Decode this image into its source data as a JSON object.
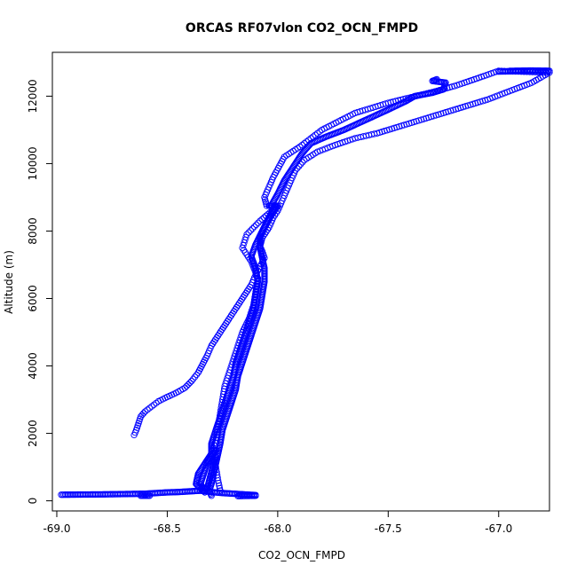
{
  "chart_data": {
    "type": "scatter",
    "title": "ORCAS RF07vlon CO2_OCN_FMPD",
    "xlabel": "CO2_OCN_FMPD",
    "ylabel": "Altitude (m)",
    "xlim": [
      -69.02,
      -66.77
    ],
    "ylim": [
      -300,
      13300
    ],
    "x_ticks": [
      -69.0,
      -68.5,
      -68.0,
      -67.5,
      -67.0
    ],
    "x_tick_labels": [
      "-69.0",
      "-68.5",
      "-68.0",
      "-67.5",
      "-67.0"
    ],
    "y_ticks": [
      0,
      2000,
      4000,
      6000,
      8000,
      10000,
      12000
    ],
    "y_tick_labels": [
      "0",
      "2000",
      "4000",
      "6000",
      "8000",
      "10000",
      "12000"
    ],
    "grid": false,
    "marker": "open-circle",
    "color": "#0000ff",
    "series": [
      {
        "style": "points",
        "points": [
          [
            -68.65,
            1950
          ],
          [
            -68.64,
            2100
          ],
          [
            -68.63,
            2300
          ],
          [
            -68.62,
            2500
          ],
          [
            -68.6,
            2650
          ],
          [
            -68.57,
            2800
          ],
          [
            -68.54,
            2950
          ],
          [
            -68.5,
            3080
          ],
          [
            -68.46,
            3200
          ],
          [
            -68.42,
            3350
          ],
          [
            -68.39,
            3550
          ],
          [
            -68.36,
            3800
          ],
          [
            -68.34,
            4050
          ],
          [
            -68.32,
            4300
          ],
          [
            -68.3,
            4600
          ],
          [
            -68.27,
            4900
          ],
          [
            -68.24,
            5200
          ],
          [
            -68.21,
            5500
          ],
          [
            -68.18,
            5800
          ],
          [
            -68.15,
            6100
          ],
          [
            -68.12,
            6400
          ],
          [
            -68.1,
            6700
          ],
          [
            -68.08,
            6950
          ],
          [
            -68.06,
            7200
          ],
          [
            -68.07,
            7400
          ],
          [
            -68.08,
            7550
          ],
          [
            -68.07,
            7800
          ],
          [
            -68.04,
            8100
          ],
          [
            -68.02,
            8400
          ],
          [
            -68.0,
            8600
          ],
          [
            -67.98,
            8900
          ],
          [
            -67.96,
            9200
          ],
          [
            -67.94,
            9500
          ],
          [
            -67.92,
            9800
          ],
          [
            -67.88,
            10100
          ],
          [
            -67.82,
            10350
          ],
          [
            -67.74,
            10550
          ],
          [
            -67.65,
            10750
          ],
          [
            -67.55,
            10900
          ],
          [
            -67.45,
            11100
          ],
          [
            -67.35,
            11300
          ],
          [
            -67.25,
            11500
          ],
          [
            -67.15,
            11700
          ],
          [
            -67.05,
            11900
          ],
          [
            -66.95,
            12150
          ],
          [
            -66.85,
            12400
          ],
          [
            -66.77,
            12700
          ],
          [
            -67.0,
            12750
          ],
          [
            -67.1,
            12520
          ],
          [
            -67.2,
            12300
          ],
          [
            -67.3,
            12120
          ],
          [
            -67.42,
            11930
          ],
          [
            -67.5,
            11800
          ],
          [
            -67.65,
            11500
          ],
          [
            -67.8,
            11000
          ],
          [
            -67.9,
            10500
          ],
          [
            -67.97,
            10200
          ],
          [
            -68.02,
            9600
          ],
          [
            -68.06,
            9000
          ],
          [
            -68.05,
            8750
          ],
          [
            -68.0,
            8750
          ],
          [
            -68.08,
            8300
          ],
          [
            -68.14,
            7900
          ],
          [
            -68.16,
            7500
          ],
          [
            -68.12,
            7100
          ],
          [
            -68.09,
            6600
          ],
          [
            -68.1,
            6200
          ],
          [
            -68.11,
            5800
          ],
          [
            -68.13,
            5400
          ],
          [
            -68.16,
            5000
          ],
          [
            -68.18,
            4600
          ],
          [
            -68.2,
            4200
          ],
          [
            -68.22,
            3800
          ],
          [
            -68.24,
            3400
          ],
          [
            -68.25,
            3000
          ],
          [
            -68.26,
            2600
          ],
          [
            -68.27,
            2200
          ],
          [
            -68.28,
            1800
          ],
          [
            -68.3,
            1400
          ],
          [
            -68.28,
            1000
          ],
          [
            -68.27,
            600
          ],
          [
            -68.26,
            300
          ]
        ]
      },
      {
        "style": "dense-band",
        "points": [
          [
            -68.04,
            8750
          ],
          [
            -68.0,
            8750
          ],
          [
            -68.03,
            8450
          ],
          [
            -68.06,
            8100
          ],
          [
            -68.08,
            7800
          ],
          [
            -68.08,
            7500
          ],
          [
            -68.07,
            7200
          ],
          [
            -68.06,
            6900
          ],
          [
            -68.06,
            6500
          ],
          [
            -68.07,
            6100
          ],
          [
            -68.08,
            5700
          ],
          [
            -68.1,
            5300
          ],
          [
            -68.12,
            4900
          ],
          [
            -68.14,
            4500
          ],
          [
            -68.16,
            4100
          ],
          [
            -68.18,
            3700
          ],
          [
            -68.19,
            3300
          ],
          [
            -68.21,
            2900
          ],
          [
            -68.23,
            2500
          ],
          [
            -68.25,
            2100
          ],
          [
            -68.26,
            1700
          ],
          [
            -68.27,
            1400
          ],
          [
            -68.28,
            1100
          ],
          [
            -68.29,
            800
          ],
          [
            -68.3,
            500
          ],
          [
            -68.31,
            300
          ],
          [
            -68.3,
            150
          ]
        ]
      },
      {
        "style": "dense-band",
        "points": [
          [
            -68.01,
            8750
          ],
          [
            -68.04,
            8400
          ],
          [
            -68.07,
            8000
          ],
          [
            -68.1,
            7600
          ],
          [
            -68.12,
            7250
          ],
          [
            -68.1,
            6900
          ],
          [
            -68.09,
            6500
          ],
          [
            -68.1,
            6100
          ],
          [
            -68.11,
            5700
          ],
          [
            -68.13,
            5300
          ],
          [
            -68.15,
            4900
          ],
          [
            -68.17,
            4500
          ],
          [
            -68.19,
            4100
          ],
          [
            -68.2,
            3700
          ],
          [
            -68.22,
            3300
          ],
          [
            -68.24,
            2900
          ],
          [
            -68.26,
            2500
          ],
          [
            -68.28,
            2100
          ],
          [
            -68.3,
            1700
          ],
          [
            -68.3,
            1400
          ],
          [
            -68.33,
            1100
          ],
          [
            -68.36,
            800
          ],
          [
            -68.37,
            500
          ],
          [
            -68.33,
            250
          ]
        ]
      },
      {
        "style": "dense-band",
        "points": [
          [
            -68.03,
            8750
          ],
          [
            -68.0,
            9100
          ],
          [
            -67.97,
            9500
          ],
          [
            -67.93,
            9900
          ],
          [
            -67.89,
            10300
          ],
          [
            -67.85,
            10600
          ],
          [
            -67.78,
            10800
          ],
          [
            -67.7,
            11000
          ],
          [
            -67.6,
            11300
          ],
          [
            -67.5,
            11600
          ],
          [
            -67.42,
            11850
          ],
          [
            -67.38,
            12000
          ],
          [
            -67.3,
            12100
          ],
          [
            -67.25,
            12200
          ],
          [
            -67.24,
            12400
          ],
          [
            -67.3,
            12450
          ],
          [
            -67.28,
            12500
          ]
        ]
      },
      {
        "style": "dense-band",
        "points": [
          [
            -66.95,
            12750
          ],
          [
            -66.85,
            12760
          ],
          [
            -66.77,
            12750
          ],
          [
            -66.9,
            12740
          ],
          [
            -67.0,
            12730
          ]
        ]
      },
      {
        "style": "dense-band",
        "points": [
          [
            -68.98,
            180
          ],
          [
            -68.9,
            185
          ],
          [
            -68.8,
            190
          ],
          [
            -68.7,
            200
          ],
          [
            -68.6,
            210
          ],
          [
            -68.55,
            230
          ],
          [
            -68.5,
            250
          ],
          [
            -68.45,
            260
          ],
          [
            -68.4,
            280
          ],
          [
            -68.35,
            300
          ],
          [
            -68.3,
            260
          ],
          [
            -68.25,
            230
          ],
          [
            -68.2,
            210
          ],
          [
            -68.15,
            190
          ],
          [
            -68.1,
            170
          ]
        ]
      },
      {
        "style": "dense-band",
        "points": [
          [
            -68.28,
            1500
          ],
          [
            -68.3,
            1300
          ],
          [
            -68.32,
            1100
          ],
          [
            -68.33,
            900
          ],
          [
            -68.34,
            700
          ],
          [
            -68.35,
            500
          ],
          [
            -68.34,
            400
          ],
          [
            -68.32,
            350
          ],
          [
            -68.31,
            600
          ],
          [
            -68.3,
            850
          ],
          [
            -68.29,
            1100
          ],
          [
            -68.28,
            1300
          ]
        ]
      },
      {
        "style": "dense-band",
        "points": [
          [
            -68.18,
            140
          ],
          [
            -68.1,
            150
          ]
        ]
      },
      {
        "style": "dense-band",
        "points": [
          [
            -68.62,
            150
          ],
          [
            -68.58,
            150
          ]
        ]
      }
    ]
  }
}
